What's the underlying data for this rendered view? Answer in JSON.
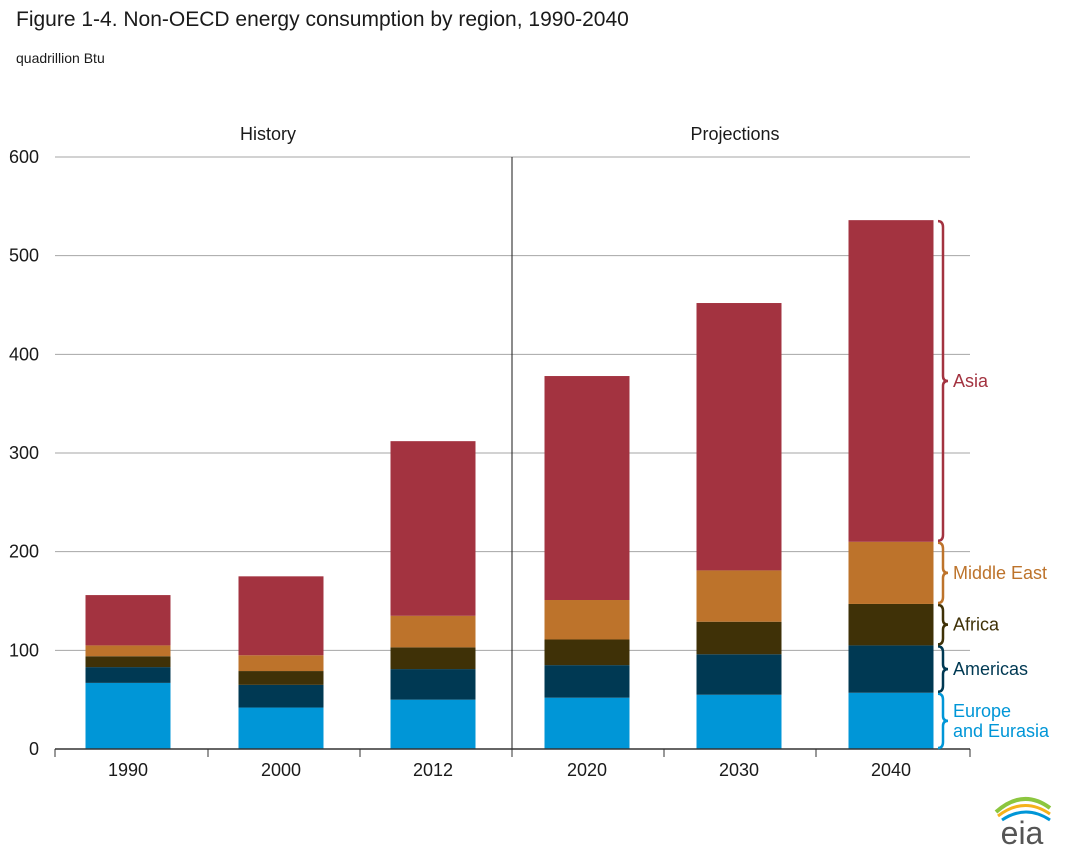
{
  "title": "Figure 1-4. Non-OECD energy consumption by region, 1990-2040",
  "subtitle": "quadrillion Btu",
  "sections": [
    "History",
    "Projections"
  ],
  "logo_text": "eia",
  "colors": {
    "europe": "#0096d7",
    "americas": "#003953",
    "africa": "#3f3107",
    "middle_east": "#bd732b",
    "asia": "#a33340",
    "grid": "#a6a6a6",
    "axis": "#333333"
  },
  "chart_data": {
    "type": "bar",
    "stacked": true,
    "categories": [
      "1990",
      "2000",
      "2012",
      "2020",
      "2030",
      "2040"
    ],
    "ylim": [
      0,
      600
    ],
    "yticks": [
      0,
      100,
      200,
      300,
      400,
      500,
      600
    ],
    "grid": true,
    "series": [
      {
        "name": "Europe\nand Eurasia",
        "key": "europe",
        "values": [
          67,
          42,
          50,
          52,
          55,
          57
        ]
      },
      {
        "name": "Americas",
        "key": "americas",
        "values": [
          16,
          23,
          31,
          33,
          41,
          48
        ]
      },
      {
        "name": "Africa",
        "key": "africa",
        "values": [
          11,
          14,
          22,
          26,
          33,
          42
        ]
      },
      {
        "name": "Middle East",
        "key": "middle_east",
        "values": [
          11,
          16,
          32,
          40,
          52,
          63
        ]
      },
      {
        "name": "Asia",
        "key": "asia",
        "values": [
          51,
          80,
          177,
          227,
          271,
          326
        ]
      }
    ],
    "legend_placement": "right of last bar, bracketed labels"
  }
}
